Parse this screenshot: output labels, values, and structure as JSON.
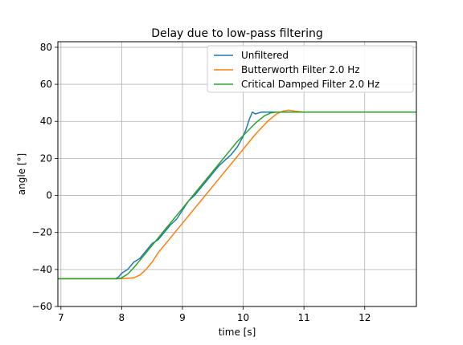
{
  "chart_data": {
    "type": "line",
    "title": "Delay due to low-pass filtering",
    "xlabel": "time [s]",
    "ylabel": "angle [°]",
    "xlim": [
      6.95,
      12.85
    ],
    "ylim": [
      -60,
      83
    ],
    "xticks": [
      7,
      8,
      9,
      10,
      11,
      12
    ],
    "yticks": [
      -60,
      -40,
      -20,
      0,
      20,
      40,
      60,
      80
    ],
    "xtick_labels": [
      "7",
      "8",
      "9",
      "10",
      "11",
      "12"
    ],
    "ytick_labels": [
      "−60",
      "−40",
      "−20",
      "0",
      "20",
      "40",
      "60",
      "80"
    ],
    "grid": true,
    "legend_position": "top-right",
    "series": [
      {
        "name": "Unfiltered",
        "color": "#1f77b4",
        "x": [
          6.95,
          7.5,
          7.9,
          7.95,
          8.0,
          8.1,
          8.2,
          8.3,
          8.4,
          8.5,
          8.6,
          8.7,
          8.8,
          8.9,
          9.0,
          9.1,
          9.2,
          9.3,
          9.4,
          9.5,
          9.6,
          9.7,
          9.8,
          9.9,
          10.0,
          10.05,
          10.1,
          10.15,
          10.2,
          10.3,
          10.5,
          11.0,
          12.0,
          12.85
        ],
        "y": [
          -45,
          -45,
          -45,
          -44,
          -42,
          -40,
          -36,
          -34,
          -30,
          -26,
          -24,
          -20,
          -16,
          -13,
          -8,
          -3,
          0,
          4,
          8,
          12,
          16,
          19,
          22,
          26,
          32,
          36,
          41,
          45,
          44,
          45,
          45,
          45,
          45,
          45
        ]
      },
      {
        "name": "Butterworth Filter 2.0 Hz",
        "color": "#ff7f0e",
        "x": [
          6.95,
          7.5,
          8.0,
          8.2,
          8.3,
          8.4,
          8.5,
          8.6,
          8.7,
          9.0,
          9.3,
          9.6,
          9.9,
          10.2,
          10.4,
          10.55,
          10.65,
          10.75,
          10.85,
          11.0,
          12.0,
          12.85
        ],
        "y": [
          -45,
          -45,
          -45,
          -44.5,
          -43,
          -40,
          -36,
          -31,
          -27,
          -15,
          -3,
          9,
          21,
          33,
          40,
          44,
          45.5,
          46,
          45.5,
          45,
          45,
          45
        ]
      },
      {
        "name": "Critical Damped Filter 2.0 Hz",
        "color": "#2ca02c",
        "x": [
          6.95,
          7.5,
          7.95,
          8.0,
          8.1,
          8.2,
          8.3,
          8.4,
          8.7,
          9.0,
          9.3,
          9.6,
          9.9,
          10.2,
          10.35,
          10.45,
          10.55,
          10.7,
          11.0,
          12.0,
          12.85
        ],
        "y": [
          -45,
          -45,
          -45,
          -44.5,
          -42.5,
          -39,
          -35,
          -31,
          -19,
          -7,
          5,
          17,
          29,
          39,
          43,
          44.5,
          45,
          45,
          45,
          45,
          45
        ]
      }
    ]
  }
}
